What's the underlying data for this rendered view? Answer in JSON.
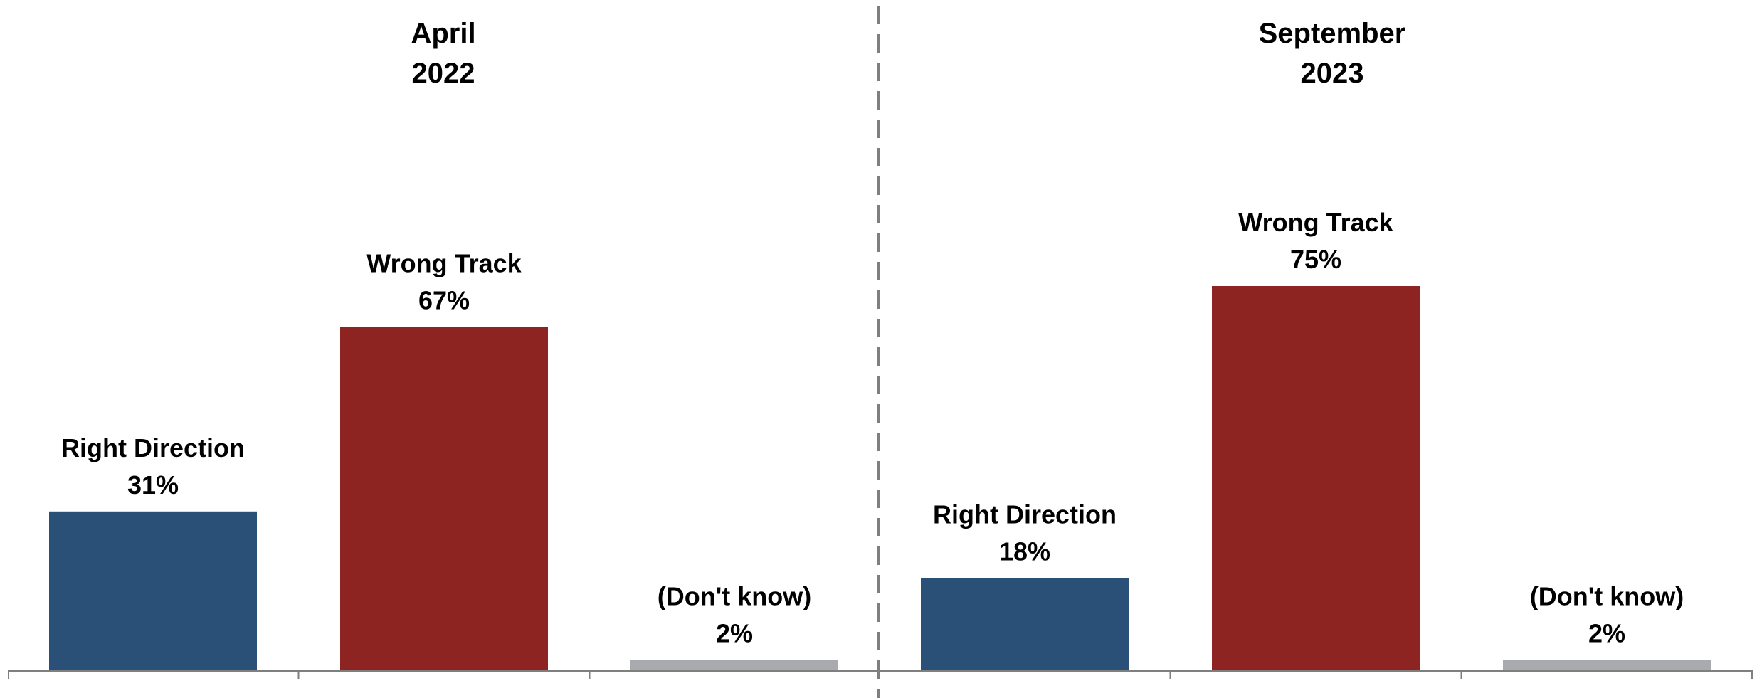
{
  "chart_data": [
    {
      "type": "bar",
      "title_lines": [
        "April",
        "2022"
      ],
      "categories": [
        "Right Direction",
        "Wrong Track",
        "(Don't know)"
      ],
      "values": [
        31,
        67,
        2
      ],
      "value_labels": [
        "31%",
        "67%",
        "2%"
      ],
      "colors": [
        "#2A5078",
        "#8E2422",
        "#A9AAAD"
      ],
      "ylim": [
        0,
        100
      ]
    },
    {
      "type": "bar",
      "title_lines": [
        "September",
        "2023"
      ],
      "categories": [
        "Right Direction",
        "Wrong Track",
        "(Don't know)"
      ],
      "values": [
        18,
        75,
        2
      ],
      "value_labels": [
        "18%",
        "75%",
        "2%"
      ],
      "colors": [
        "#2A5078",
        "#8E2422",
        "#A9AAAD"
      ],
      "ylim": [
        0,
        100
      ]
    }
  ],
  "style": {
    "axis_color": "#7F7F7F",
    "divider_color": "#7F7F7F",
    "divider_style": "dashed"
  }
}
